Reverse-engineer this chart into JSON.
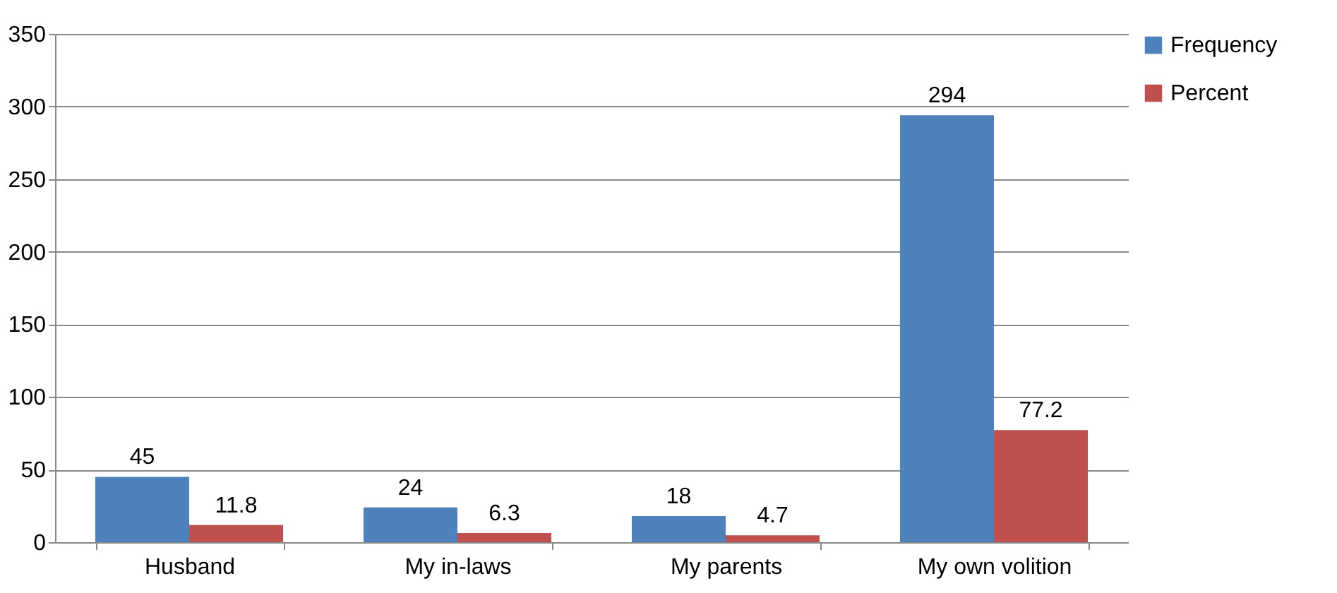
{
  "chart_data": {
    "type": "bar",
    "categories": [
      "Husband",
      "My in-laws",
      "My parents",
      "My own volition"
    ],
    "series": [
      {
        "name": "Frequency",
        "color": "#4f81bd",
        "values": [
          45,
          24,
          18,
          294
        ]
      },
      {
        "name": "Percent",
        "color": "#c0504d",
        "values": [
          11.8,
          6.3,
          4.7,
          77.2
        ]
      }
    ],
    "ylim": [
      0,
      350
    ],
    "yticks": [
      0,
      50,
      100,
      150,
      200,
      250,
      300,
      350
    ],
    "grid": "y",
    "legend": "right",
    "data_labels": true
  }
}
